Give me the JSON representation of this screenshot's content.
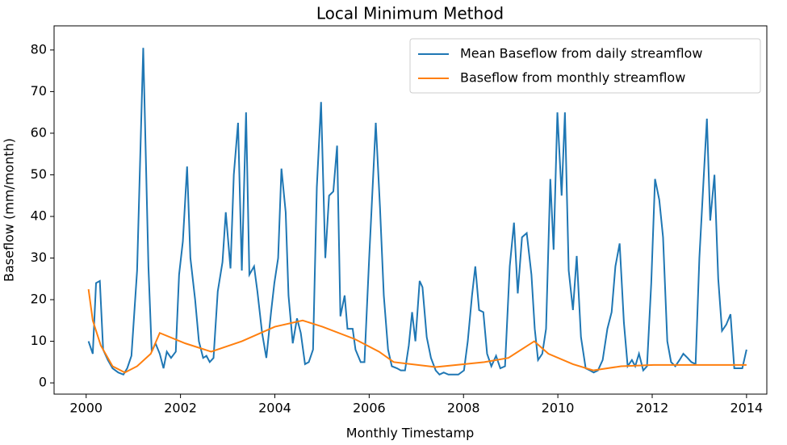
{
  "chart_data": {
    "type": "line",
    "title": "Local Minimum Method",
    "xlabel": "Monthly Timestamp",
    "ylabel": "Baseflow (mm/month)",
    "xlim": [
      1999.32,
      2014.43
    ],
    "ylim": [
      -2.7,
      85.8
    ],
    "xticks": [
      2000,
      2002,
      2004,
      2006,
      2008,
      2010,
      2012,
      2014
    ],
    "yticks": [
      0,
      10,
      20,
      30,
      40,
      50,
      60,
      70,
      80
    ],
    "legend": "upper right",
    "series": [
      {
        "name": "Mean Baseflow from daily streamflow",
        "color": "#1f77b4",
        "x": [
          2000.05,
          2000.14,
          2000.21,
          2000.29,
          2000.36,
          2000.46,
          2000.56,
          2000.68,
          2000.79,
          2000.87,
          2000.96,
          2001.08,
          2001.21,
          2001.32,
          2001.39,
          2001.47,
          2001.56,
          2001.64,
          2001.71,
          2001.8,
          2001.9,
          2001.97,
          2002.05,
          2002.14,
          2002.21,
          2002.31,
          2002.39,
          2002.48,
          2002.55,
          2002.62,
          2002.7,
          2002.79,
          2002.89,
          2002.96,
          2003.06,
          2003.13,
          2003.22,
          2003.3,
          2003.39,
          2003.46,
          2003.56,
          2003.63,
          2003.73,
          2003.82,
          2003.92,
          2003.99,
          2004.07,
          2004.14,
          2004.23,
          2004.29,
          2004.38,
          2004.47,
          2004.55,
          2004.64,
          2004.72,
          2004.81,
          2004.89,
          2004.98,
          2005.07,
          2005.15,
          2005.24,
          2005.32,
          2005.39,
          2005.48,
          2005.54,
          2005.65,
          2005.71,
          2005.82,
          2005.9,
          2006.0,
          2006.14,
          2006.23,
          2006.31,
          2006.4,
          2006.48,
          2006.59,
          2006.67,
          2006.76,
          2006.84,
          2006.91,
          2006.98,
          2007.07,
          2007.13,
          2007.22,
          2007.31,
          2007.41,
          2007.49,
          2007.58,
          2007.68,
          2007.79,
          2007.89,
          2008.01,
          2008.09,
          2008.18,
          2008.25,
          2008.33,
          2008.42,
          2008.5,
          2008.59,
          2008.69,
          2008.78,
          2008.88,
          2008.98,
          2009.07,
          2009.15,
          2009.24,
          2009.34,
          2009.44,
          2009.51,
          2009.58,
          2009.67,
          2009.75,
          2009.84,
          2009.91,
          2009.99,
          2010.08,
          2010.15,
          2010.23,
          2010.32,
          2010.4,
          2010.49,
          2010.59,
          2010.68,
          2010.76,
          2010.85,
          2010.95,
          2011.05,
          2011.14,
          2011.22,
          2011.31,
          2011.4,
          2011.48,
          2011.57,
          2011.64,
          2011.72,
          2011.81,
          2011.89,
          2011.98,
          2012.06,
          2012.15,
          2012.23,
          2012.32,
          2012.4,
          2012.49,
          2012.58,
          2012.66,
          2012.75,
          2012.83,
          2012.92,
          2013.0,
          2013.09,
          2013.16,
          2013.23,
          2013.32,
          2013.4,
          2013.48,
          2013.57,
          2013.66,
          2013.74,
          2013.84,
          2013.91,
          2014.0
        ],
        "values": [
          10,
          7,
          24,
          24.5,
          8,
          5.5,
          3.5,
          2.5,
          2,
          3.5,
          6.5,
          27,
          80.5,
          28,
          7.5,
          9.5,
          7,
          3.5,
          7.5,
          6,
          7.5,
          26,
          34,
          52,
          30,
          20,
          10,
          6,
          6.5,
          5,
          6,
          22,
          29,
          41,
          27.5,
          50,
          62.5,
          27,
          65,
          26,
          28,
          22,
          12,
          6,
          17,
          24,
          30,
          51.5,
          41,
          21,
          9.5,
          15.5,
          12,
          4.5,
          5,
          8,
          47,
          67.5,
          30,
          45,
          46,
          57,
          16,
          21,
          13,
          13,
          8,
          5,
          5,
          30,
          62.5,
          42,
          21,
          8,
          4,
          3.5,
          3,
          3,
          9,
          17,
          10,
          24.5,
          23,
          11,
          6,
          3,
          2,
          2.5,
          2,
          2,
          2,
          3,
          10,
          21,
          28,
          17.5,
          17,
          7,
          4,
          6.5,
          3.5,
          4,
          28,
          38.5,
          21.5,
          35,
          36,
          26,
          13,
          5.5,
          7,
          13,
          49,
          32,
          65,
          45,
          65,
          27,
          17.5,
          30.5,
          11,
          3.5,
          3,
          2.5,
          3,
          5.5,
          13,
          17,
          28,
          33.5,
          14.5,
          4,
          5.5,
          4,
          7,
          3,
          4,
          24,
          49,
          44,
          35,
          10,
          5,
          4,
          5.5,
          7,
          6,
          5,
          4.5,
          30,
          49,
          63.5,
          39,
          50,
          25,
          12.5,
          14,
          16.5,
          3.5,
          3.5,
          3.5,
          8
        ]
      },
      {
        "name": "Baseflow from monthly streamflow",
        "color": "#ff7f0e",
        "x": [
          2000.05,
          2000.14,
          2000.31,
          2000.56,
          2000.82,
          2001.08,
          2001.37,
          2001.56,
          2002.1,
          2002.65,
          2003.3,
          2004.0,
          2004.59,
          2005.01,
          2005.7,
          2006.21,
          2006.52,
          2007.41,
          2008.44,
          2008.95,
          2009.5,
          2009.8,
          2010.32,
          2010.75,
          2011.34,
          2012.03,
          2014.0
        ],
        "values": [
          22.5,
          15,
          9,
          4,
          2.5,
          4,
          7,
          12,
          9.5,
          7.5,
          10,
          13.5,
          15,
          13.5,
          10.5,
          7.5,
          5,
          3.8,
          5,
          6,
          10,
          7,
          4.5,
          3,
          4,
          4.3,
          4.3
        ]
      }
    ]
  }
}
